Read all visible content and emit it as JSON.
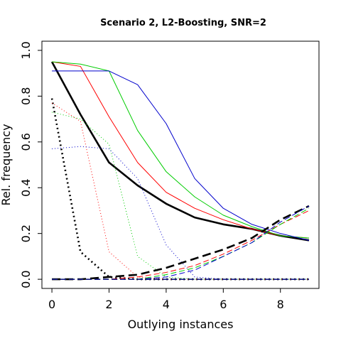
{
  "chart_data": {
    "type": "line",
    "title": "Scenario 2, L2-Boosting, SNR=2",
    "xlabel": "Outlying instances",
    "ylabel": "Rel. frequency",
    "xlim": [
      -0.35,
      9.35
    ],
    "ylim": [
      -0.04,
      1.04
    ],
    "xticks": [
      0,
      2,
      4,
      6,
      8
    ],
    "xtick_labels": [
      "0",
      "2",
      "4",
      "6",
      "8"
    ],
    "yticks": [
      0.0,
      0.2,
      0.4,
      0.6,
      0.8,
      1.0
    ],
    "ytick_labels": [
      "0.0",
      "0.2",
      "0.4",
      "0.6",
      "0.8",
      "1.0"
    ],
    "grid": false,
    "legend": "none",
    "x": [
      0,
      1,
      2,
      3,
      4,
      5,
      6,
      7,
      8,
      9
    ],
    "series": [
      {
        "color": "#000000",
        "style": "solid",
        "width": 2.6,
        "values": [
          0.95,
          0.72,
          0.51,
          0.41,
          0.33,
          0.27,
          0.24,
          0.22,
          0.19,
          0.17
        ]
      },
      {
        "color": "#ff0000",
        "style": "solid",
        "width": 1,
        "values": [
          0.95,
          0.93,
          0.71,
          0.51,
          0.38,
          0.31,
          0.26,
          0.22,
          0.19,
          0.18
        ]
      },
      {
        "color": "#00cc00",
        "style": "solid",
        "width": 1,
        "values": [
          0.95,
          0.94,
          0.91,
          0.65,
          0.47,
          0.36,
          0.28,
          0.23,
          0.19,
          0.18
        ]
      },
      {
        "color": "#0000cc",
        "style": "solid",
        "width": 1,
        "values": [
          0.91,
          0.91,
          0.91,
          0.85,
          0.68,
          0.44,
          0.31,
          0.24,
          0.2,
          0.17
        ]
      },
      {
        "color": "#000000",
        "style": "dotted",
        "width": 2.6,
        "values": [
          0.79,
          0.12,
          0.01,
          0.0,
          0.0,
          0.0,
          0.0,
          0.0,
          0.0,
          0.0
        ]
      },
      {
        "color": "#ff0000",
        "style": "dotted",
        "width": 1,
        "values": [
          0.77,
          0.69,
          0.12,
          0.01,
          0.0,
          0.0,
          0.0,
          0.0,
          0.0,
          0.0
        ]
      },
      {
        "color": "#00cc00",
        "style": "dotted",
        "width": 1,
        "values": [
          0.73,
          0.7,
          0.59,
          0.1,
          0.01,
          0.0,
          0.0,
          0.0,
          0.0,
          0.0
        ]
      },
      {
        "color": "#0000cc",
        "style": "dotted",
        "width": 1,
        "values": [
          0.57,
          0.58,
          0.57,
          0.44,
          0.15,
          0.01,
          0.0,
          0.0,
          0.0,
          0.0
        ]
      },
      {
        "color": "#000000",
        "style": "dashed",
        "width": 2.6,
        "values": [
          0.0,
          0.0,
          0.01,
          0.02,
          0.05,
          0.09,
          0.13,
          0.18,
          0.26,
          0.32
        ]
      },
      {
        "color": "#ff0000",
        "style": "dashed",
        "width": 1,
        "values": [
          0.0,
          0.0,
          0.0,
          0.01,
          0.03,
          0.06,
          0.11,
          0.17,
          0.24,
          0.3
        ]
      },
      {
        "color": "#00cc00",
        "style": "dashed",
        "width": 1,
        "values": [
          0.0,
          0.0,
          0.0,
          0.0,
          0.02,
          0.05,
          0.1,
          0.16,
          0.24,
          0.31
        ]
      },
      {
        "color": "#0000cc",
        "style": "dashed",
        "width": 1,
        "values": [
          0.0,
          0.0,
          0.0,
          0.0,
          0.01,
          0.04,
          0.1,
          0.16,
          0.25,
          0.32
        ]
      },
      {
        "color": "#000000",
        "style": "dashed",
        "width": 1.5,
        "values": [
          0.0,
          0.0,
          0.0,
          0.0,
          0.0,
          0.0,
          0.0,
          0.0,
          0.0,
          0.0
        ]
      },
      {
        "color": "#ff0000",
        "style": "dashed",
        "width": 1,
        "values": [
          0.0,
          0.0,
          0.0,
          0.0,
          0.0,
          0.0,
          0.0,
          0.0,
          0.0,
          0.0
        ]
      },
      {
        "color": "#00cc00",
        "style": "dashed",
        "width": 1,
        "values": [
          0.0,
          0.0,
          0.0,
          0.0,
          0.0,
          0.0,
          0.0,
          0.0,
          0.0,
          0.0
        ]
      },
      {
        "color": "#0000cc",
        "style": "dashed",
        "width": 1,
        "values": [
          0.0,
          0.0,
          0.0,
          0.0,
          0.0,
          0.0,
          0.0,
          0.0,
          0.0,
          0.0
        ]
      }
    ]
  }
}
